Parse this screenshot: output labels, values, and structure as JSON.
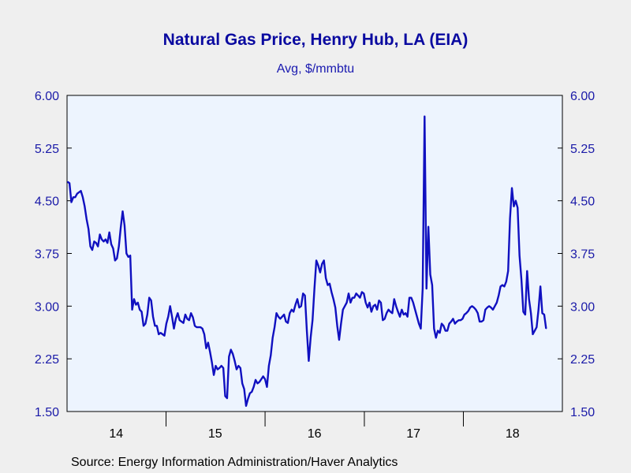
{
  "chart_data": {
    "type": "line",
    "title": "Natural Gas Price, Henry Hub, LA (EIA)",
    "subtitle": "Avg, $/mmbtu",
    "source": "Source:  Energy Information Administration/Haver Analytics",
    "ylim": [
      1.5,
      6.0
    ],
    "y_ticks": [
      "1.50",
      "2.25",
      "3.00",
      "3.75",
      "4.50",
      "5.25",
      "6.00"
    ],
    "x_labels": [
      "14",
      "15",
      "16",
      "17",
      "18"
    ],
    "x_range": [
      "2014-01",
      "2019-01"
    ],
    "grid": false,
    "colors": {
      "line": "#1010c0",
      "plot_bg": "#edf4fe",
      "page_bg": "#efefef",
      "axis_text": "#1a1aa8"
    },
    "series": [
      {
        "frequency": "weekly",
        "start": "2014-01-03",
        "values": [
          4.77,
          4.75,
          4.48,
          4.55,
          4.55,
          4.6,
          4.62,
          4.64,
          4.55,
          4.42,
          4.24,
          4.1,
          3.85,
          3.8,
          3.92,
          3.9,
          3.85,
          4.02,
          3.95,
          3.92,
          3.95,
          3.9,
          4.05,
          3.88,
          3.82,
          3.65,
          3.68,
          3.85,
          4.12,
          4.35,
          4.15,
          3.75,
          3.7,
          3.72,
          2.95,
          3.1,
          3.02,
          3.05,
          2.95,
          2.92,
          2.72,
          2.75,
          2.88,
          3.12,
          3.08,
          2.85,
          2.72,
          2.72,
          2.6,
          2.62,
          2.6,
          2.58,
          2.75,
          2.85,
          3.0,
          2.85,
          2.68,
          2.82,
          2.9,
          2.8,
          2.78,
          2.76,
          2.88,
          2.82,
          2.8,
          2.9,
          2.84,
          2.72,
          2.7,
          2.7,
          2.7,
          2.68,
          2.6,
          2.4,
          2.48,
          2.35,
          2.2,
          2.02,
          2.15,
          2.1,
          2.12,
          2.15,
          2.12,
          1.72,
          1.69,
          2.28,
          2.38,
          2.32,
          2.22,
          2.1,
          2.15,
          2.12,
          1.9,
          1.82,
          1.58,
          1.68,
          1.76,
          1.78,
          1.85,
          1.95,
          1.9,
          1.92,
          1.96,
          2.0,
          1.96,
          1.85,
          2.15,
          2.3,
          2.55,
          2.7,
          2.9,
          2.85,
          2.82,
          2.85,
          2.88,
          2.78,
          2.76,
          2.9,
          2.95,
          2.92,
          3.02,
          3.1,
          2.98,
          3.0,
          3.18,
          3.15,
          2.65,
          2.22,
          2.55,
          2.8,
          3.25,
          3.65,
          3.58,
          3.48,
          3.6,
          3.65,
          3.4,
          3.3,
          3.32,
          3.2,
          3.1,
          2.98,
          2.72,
          2.52,
          2.75,
          2.95,
          3.0,
          3.05,
          3.18,
          3.05,
          3.12,
          3.12,
          3.18,
          3.15,
          3.12,
          3.2,
          3.18,
          3.05,
          2.98,
          3.05,
          2.92,
          3.0,
          3.02,
          2.95,
          3.08,
          3.05,
          2.8,
          2.82,
          2.9,
          2.95,
          2.92,
          2.9,
          3.1,
          3.0,
          2.92,
          2.85,
          2.95,
          2.88,
          2.9,
          2.85,
          3.12,
          3.12,
          3.05,
          2.95,
          2.85,
          2.75,
          2.68,
          3.25,
          5.7,
          3.25,
          4.13,
          3.45,
          3.3,
          2.68,
          2.55,
          2.65,
          2.62,
          2.75,
          2.72,
          2.65,
          2.65,
          2.75,
          2.78,
          2.82,
          2.75,
          2.78,
          2.8,
          2.8,
          2.82,
          2.88,
          2.9,
          2.93,
          2.98,
          3.0,
          2.98,
          2.95,
          2.9,
          2.78,
          2.78,
          2.8,
          2.95,
          2.98,
          3.0,
          2.98,
          2.95,
          3.0,
          3.05,
          3.15,
          3.28,
          3.3,
          3.28,
          3.35,
          3.5,
          4.25,
          4.68,
          4.42,
          4.5,
          4.4,
          3.72,
          3.38,
          2.92,
          2.88,
          3.5,
          3.1,
          2.9,
          2.6,
          2.65,
          2.7,
          2.95,
          3.28,
          2.9,
          2.88,
          2.68
        ]
      }
    ]
  }
}
